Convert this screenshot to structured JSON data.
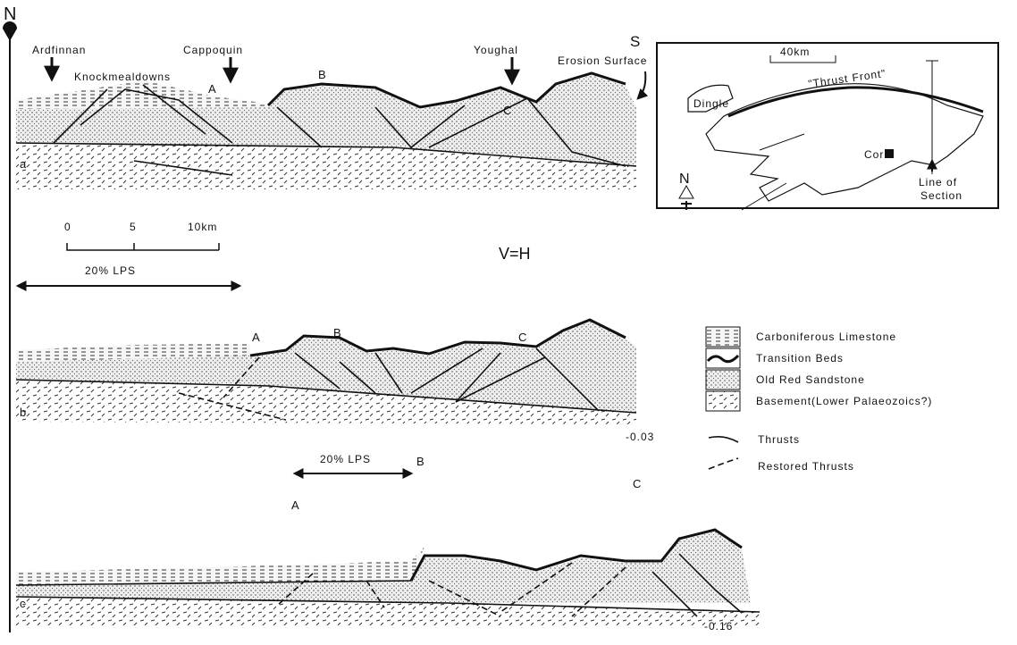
{
  "compass": {
    "north": "N",
    "south": "S"
  },
  "section_a": {
    "panel": "a",
    "places": [
      "Ardfinnan",
      "Knockmealdowns",
      "Cappoquin",
      "Youghal",
      "Erosion Surface"
    ],
    "markers": [
      "A",
      "B",
      "C"
    ]
  },
  "scale_bar": {
    "ticks": [
      "0",
      "5",
      "10km"
    ],
    "ratio": "V=H"
  },
  "section_b": {
    "panel": "b",
    "shortening": "20% LPS",
    "markers": [
      "A",
      "B",
      "C"
    ],
    "value": "-0.03"
  },
  "section_c": {
    "panel": "c",
    "shortening": "20% LPS",
    "markers": [
      "A",
      "B",
      "C"
    ],
    "value": "-0.16"
  },
  "inset_map": {
    "scale": "40km",
    "places": [
      "Dingle",
      "\"Thrust Front\"",
      "Cork"
    ],
    "line_of_section": [
      "Line of",
      "Section"
    ],
    "north": "N"
  },
  "legend": {
    "items": [
      "Carboniferous Limestone",
      "Transition Beds",
      "Old Red Sandstone",
      "Basement(Lower Palaeozoics?)",
      "Thrusts",
      "Restored Thrusts"
    ]
  }
}
